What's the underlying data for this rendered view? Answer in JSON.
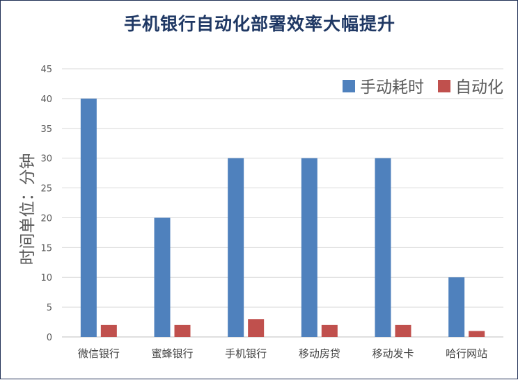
{
  "chart_data": {
    "type": "bar",
    "title": "手机银行自动化部署效率大幅提升",
    "xlabel": "",
    "ylabel": "时间单位：分钟",
    "ylim": [
      0,
      45
    ],
    "yticks": [
      0,
      5,
      10,
      15,
      20,
      25,
      30,
      35,
      40,
      45
    ],
    "categories": [
      "微信银行",
      "蜜蜂银行",
      "手机银行",
      "移动房贷",
      "移动发卡",
      "哈行网站"
    ],
    "series": [
      {
        "name": "手动耗时",
        "color": "#4f81bd",
        "values": [
          40,
          20,
          30,
          30,
          30,
          10
        ]
      },
      {
        "name": "自动化",
        "color": "#c0504d",
        "values": [
          2,
          2,
          3,
          2,
          2,
          1
        ]
      }
    ],
    "grid": true,
    "legend": "top-right"
  }
}
